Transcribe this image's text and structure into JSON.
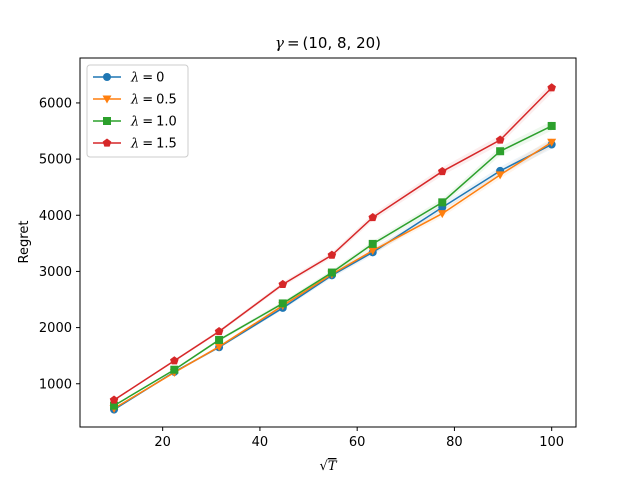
{
  "chart_data": {
    "type": "line",
    "title_symbol": "γ",
    "title_value": "(10, 8, 20)",
    "xlabel_symbol": "T",
    "xlabel_prefix": "√",
    "ylabel": "Regret",
    "xlim": [
      3,
      105
    ],
    "ylim": [
      230,
      6800
    ],
    "xticks": [
      20,
      40,
      60,
      80,
      100
    ],
    "yticks": [
      1000,
      2000,
      3000,
      4000,
      5000,
      6000
    ],
    "x": [
      10,
      22.4,
      31.6,
      44.7,
      54.8,
      63.2,
      77.5,
      89.4,
      100
    ],
    "legend_position": "upper left",
    "series": [
      {
        "name_symbol": "λ",
        "name_value": "0",
        "color": "#1f77b4",
        "marker": "circle",
        "values": [
          540,
          1210,
          1650,
          2350,
          2930,
          3340,
          4140,
          4790,
          5260
        ]
      },
      {
        "name_symbol": "λ",
        "name_value": "0.5",
        "color": "#ff7f0e",
        "marker": "triangle-down",
        "values": [
          560,
          1200,
          1660,
          2390,
          2950,
          3370,
          4030,
          4720,
          5300
        ]
      },
      {
        "name_symbol": "λ",
        "name_value": "1.0",
        "color": "#2ca02c",
        "marker": "square",
        "values": [
          610,
          1250,
          1780,
          2430,
          2980,
          3490,
          4230,
          5140,
          5590
        ]
      },
      {
        "name_symbol": "λ",
        "name_value": "1.5",
        "color": "#d62728",
        "marker": "pentagon",
        "values": [
          710,
          1410,
          1930,
          2770,
          3290,
          3960,
          4780,
          5340,
          6270
        ]
      }
    ]
  }
}
